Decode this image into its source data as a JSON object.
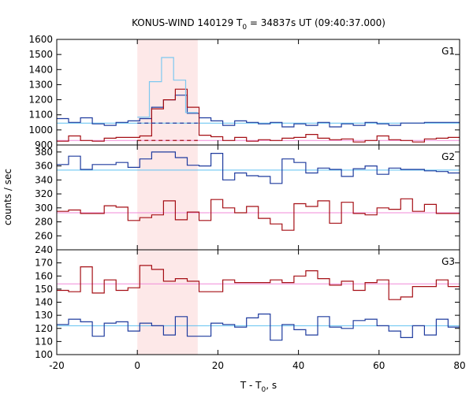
{
  "chart_data": {
    "type": "line",
    "title_main": "KONUS-WIND 140129 T",
    "title_sub": "0",
    "title_rest": " = 34837s UT (09:40:37.000)",
    "xlabel_main": "T - T",
    "xlabel_sub": "0",
    "xlabel_rest": ", s",
    "ylabel": "counts / sec",
    "xlim": [
      -20,
      80
    ],
    "x_ticks": [
      "-20",
      "0",
      "20",
      "40",
      "60",
      "80"
    ],
    "x_tick_values": [
      -20,
      0,
      20,
      40,
      60,
      80
    ],
    "highlight_interval": [
      0,
      15
    ],
    "bin_width": 2.944,
    "bin_start": -20,
    "colors": {
      "highlight": "#fde8e8",
      "sum_series": "#7ec8f0",
      "blue_series": "#1f3b9e",
      "red_series": "#a50f15",
      "blue_bg": "#5ec0f0",
      "red_bg": "#f08ad8"
    },
    "panels": [
      {
        "label": "G1",
        "ylim": [
          900,
          1600
        ],
        "y_ticks": [
          "900",
          "1000",
          "1100",
          "1200",
          "1300",
          "1400",
          "1500",
          "1600"
        ],
        "y_tick_values": [
          900,
          1000,
          1100,
          1200,
          1300,
          1400,
          1500,
          1600
        ],
        "series": [
          {
            "role": "sum",
            "color": "sum_series",
            "x_range": [
              0,
              15
            ],
            "values": [
              1085,
              1320,
              1480,
              1330,
              1115
            ]
          },
          {
            "role": "blue",
            "color": "blue_series",
            "values": [
              1075,
              1050,
              1080,
              1040,
              1030,
              1050,
              1060,
              1075,
              1150,
              1200,
              1230,
              1110,
              1080,
              1060,
              1030,
              1060,
              1050,
              1040,
              1050,
              1020,
              1040,
              1030,
              1050,
              1020,
              1040,
              1030,
              1050,
              1040,
              1030,
              1045,
              1045,
              1050,
              1050,
              1050
            ]
          },
          {
            "role": "red",
            "color": "red_series",
            "values": [
              925,
              960,
              930,
              925,
              945,
              950,
              950,
              960,
              1140,
              1200,
              1270,
              1150,
              965,
              955,
              930,
              950,
              925,
              935,
              930,
              945,
              950,
              970,
              945,
              935,
              940,
              920,
              930,
              960,
              935,
              930,
              920,
              940,
              945,
              950
            ]
          },
          {
            "role": "bg_blue",
            "color": "blue_bg",
            "value": 1045
          },
          {
            "role": "bg_red",
            "color": "red_bg",
            "value": 930
          },
          {
            "role": "dashed_blue",
            "color": "blue_series",
            "x_range": [
              0,
              15
            ],
            "value": 1045
          },
          {
            "role": "dashed_red",
            "color": "red_series",
            "x_range": [
              0,
              15
            ],
            "value": 930
          }
        ]
      },
      {
        "label": "G2",
        "ylim": [
          240,
          390
        ],
        "y_ticks": [
          "240",
          "260",
          "280",
          "300",
          "320",
          "340",
          "360",
          "380"
        ],
        "y_tick_values": [
          240,
          260,
          280,
          300,
          320,
          340,
          360,
          380
        ],
        "series": [
          {
            "role": "blue",
            "color": "blue_series",
            "values": [
              362,
              374,
              355,
              362,
              362,
              365,
              358,
              370,
              380,
              380,
              372,
              361,
              360,
              378,
              340,
              350,
              346,
              345,
              335,
              370,
              365,
              350,
              357,
              355,
              345,
              356,
              360,
              348,
              357,
              355,
              355,
              353,
              352,
              350
            ]
          },
          {
            "role": "red",
            "color": "red_series",
            "values": [
              295,
              297,
              292,
              292,
              303,
              301,
              282,
              286,
              290,
              310,
              283,
              294,
              282,
              312,
              300,
              293,
              302,
              285,
              277,
              268,
              306,
              302,
              310,
              278,
              308,
              292,
              290,
              300,
              298,
              313,
              295,
              305,
              292,
              292
            ]
          },
          {
            "role": "bg_blue",
            "color": "blue_bg",
            "value": 354
          },
          {
            "role": "bg_red",
            "color": "red_bg",
            "value": 293
          }
        ]
      },
      {
        "label": "G3",
        "ylim": [
          100,
          180
        ],
        "y_ticks": [
          "100",
          "110",
          "120",
          "130",
          "140",
          "150",
          "160",
          "170"
        ],
        "y_tick_values": [
          100,
          110,
          120,
          130,
          140,
          150,
          160,
          170
        ],
        "series": [
          {
            "role": "red",
            "color": "red_series",
            "values": [
              149,
              148,
              167,
              147,
              157,
              149,
              151,
              168,
              165,
              156,
              158,
              156,
              148,
              148,
              157,
              155,
              155,
              155,
              157,
              155,
              160,
              164,
              158,
              153,
              156,
              149,
              155,
              157,
              142,
              144,
              152,
              152,
              157,
              152
            ]
          },
          {
            "role": "blue",
            "color": "blue_series",
            "values": [
              123,
              127,
              125,
              114,
              124,
              125,
              118,
              124,
              122,
              115,
              129,
              114,
              114,
              124,
              123,
              121,
              128,
              131,
              111,
              123,
              119,
              115,
              129,
              121,
              120,
              126,
              127,
              122,
              118,
              113,
              122,
              115,
              127,
              121
            ]
          },
          {
            "role": "bg_blue",
            "color": "blue_bg",
            "value": 122
          },
          {
            "role": "bg_red",
            "color": "red_bg",
            "value": 154
          }
        ]
      }
    ]
  }
}
